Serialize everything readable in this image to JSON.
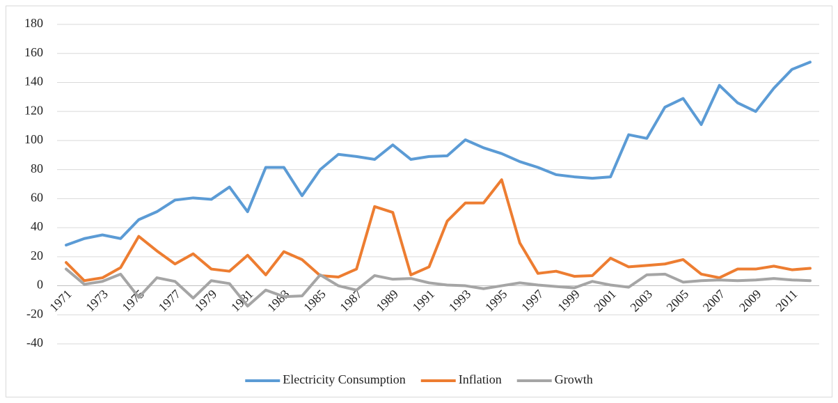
{
  "chart_data": {
    "type": "line",
    "categories": [
      "1971",
      null,
      "1973",
      null,
      "1975",
      null,
      "1977",
      null,
      "1979",
      null,
      "1981",
      null,
      "1983",
      null,
      "1985",
      null,
      "1987",
      null,
      "1989",
      null,
      "1991",
      null,
      "1993",
      null,
      "1995",
      null,
      "1997",
      null,
      "1999",
      null,
      "2001",
      null,
      "2003",
      null,
      "2005",
      null,
      "2007",
      null,
      "2009",
      null,
      "2011",
      null
    ],
    "series": [
      {
        "name": "Electricity Consumption",
        "color": "#5b9bd5",
        "values": [
          28,
          32.5,
          35,
          32.5,
          45.5,
          51,
          59,
          60.5,
          59.5,
          68,
          51,
          81.5,
          81.5,
          62,
          80,
          90.5,
          89,
          87,
          97,
          87,
          89,
          89.5,
          100.5,
          95,
          91,
          85.5,
          81.5,
          76.5,
          75,
          74,
          75,
          104,
          101.5,
          123,
          129,
          111,
          138,
          126,
          120,
          136,
          149,
          154
        ]
      },
      {
        "name": "Inflation",
        "color": "#ed7d31",
        "values": [
          16,
          3.5,
          5.5,
          12.5,
          34,
          24,
          15,
          22,
          11.5,
          10,
          21,
          7.5,
          23.5,
          18,
          7,
          6,
          11.5,
          54.5,
          50.5,
          7.5,
          13,
          44.5,
          57,
          57,
          73,
          29.5,
          8.5,
          10,
          6.5,
          7,
          19,
          13,
          14,
          15,
          18,
          8,
          5.5,
          11.5,
          11.5,
          13.5,
          11,
          12
        ]
      },
      {
        "name": "Growth",
        "color": "#a5a5a5",
        "values": [
          11.5,
          1,
          3,
          8,
          -8,
          5.5,
          3,
          -8.5,
          3.5,
          1.5,
          -14,
          -3,
          -7.5,
          -7,
          7.5,
          0,
          -3,
          7,
          4.5,
          5,
          2,
          0.5,
          0,
          -2,
          0,
          2,
          0.5,
          -0.5,
          -1.5,
          3,
          0.5,
          -1,
          7.5,
          8,
          2.5,
          3.5,
          4,
          3.5,
          4,
          5,
          4,
          3.5
        ]
      }
    ],
    "ylim": [
      -40,
      180
    ],
    "yticks": [
      -40,
      -20,
      0,
      20,
      40,
      60,
      80,
      100,
      120,
      140,
      160,
      180
    ],
    "grid": true,
    "legend": "bottom"
  }
}
